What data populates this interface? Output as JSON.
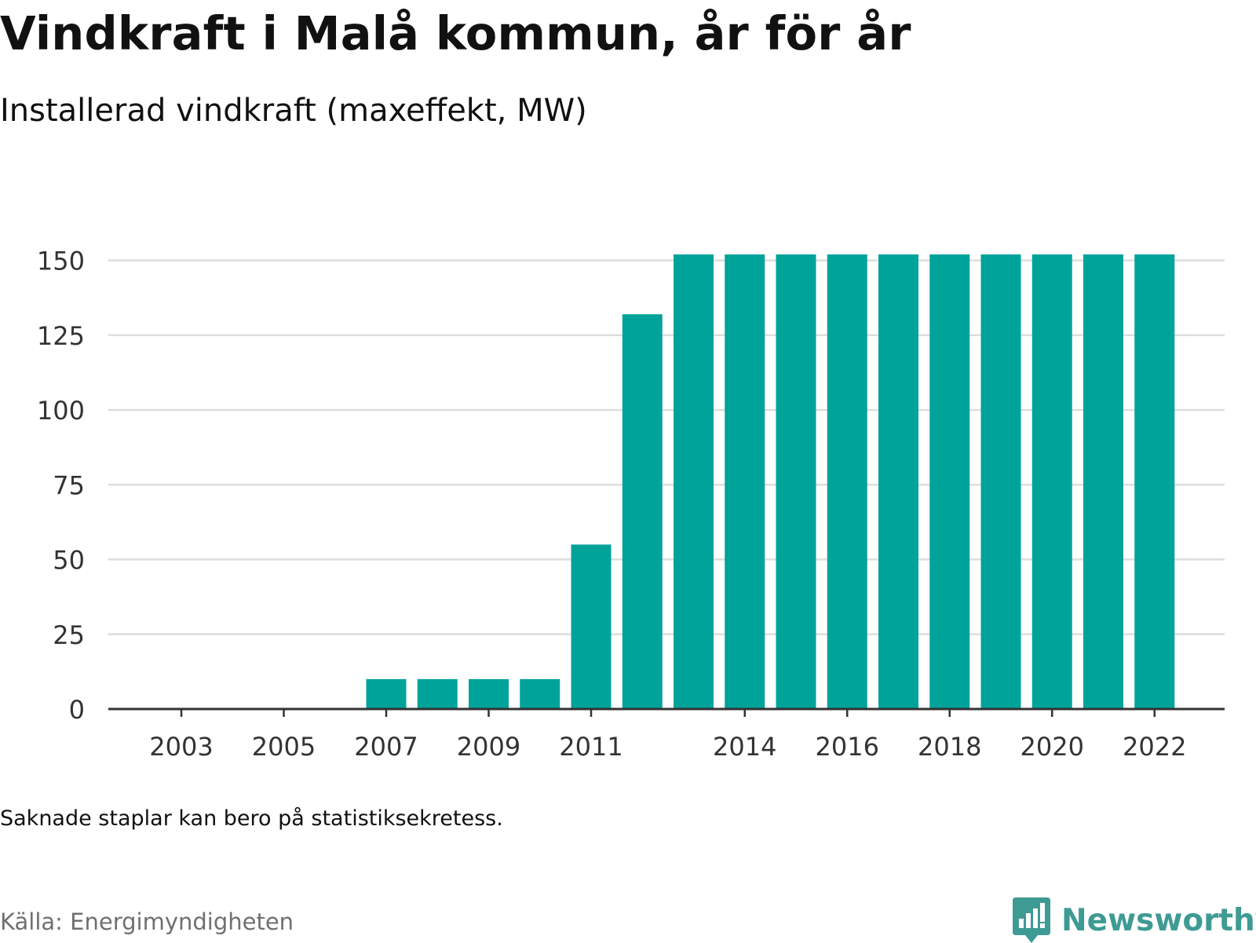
{
  "title": "Vindkraft i Malå kommun, år för år",
  "subtitle": "Installerad vindkraft (maxeffekt, MW)",
  "note": "Saknade staplar kan bero på statistiksekretess.",
  "source": "Källa: Energimyndigheten",
  "brand": {
    "name": "Newsworthy",
    "icon": "newsworthy-logo-icon",
    "color": "#3e9b94"
  },
  "chart_data": {
    "type": "bar",
    "x": [
      2003,
      2004,
      2005,
      2006,
      2007,
      2008,
      2009,
      2010,
      2011,
      2012,
      2013,
      2014,
      2015,
      2016,
      2017,
      2018,
      2019,
      2020,
      2021,
      2022
    ],
    "values": [
      0,
      0,
      0,
      0,
      10,
      10,
      10,
      10,
      55,
      132,
      152,
      152,
      152,
      152,
      152,
      152,
      152,
      152,
      152,
      152
    ],
    "x_tick_labels": [
      "2003",
      "2005",
      "2007",
      "2009",
      "2011",
      "2014",
      "2016",
      "2018",
      "2020",
      "2022"
    ],
    "y_ticks": [
      0,
      25,
      50,
      75,
      100,
      125,
      150
    ],
    "ylim": [
      0,
      157
    ],
    "title": "Vindkraft i Malå kommun, år för år",
    "subtitle": "Installerad vindkraft (maxeffekt, MW)",
    "xlabel": "",
    "ylabel": "",
    "grid": true,
    "bar_color": "#00a39a",
    "grid_color": "#dddddd",
    "axis_color": "#333333"
  }
}
